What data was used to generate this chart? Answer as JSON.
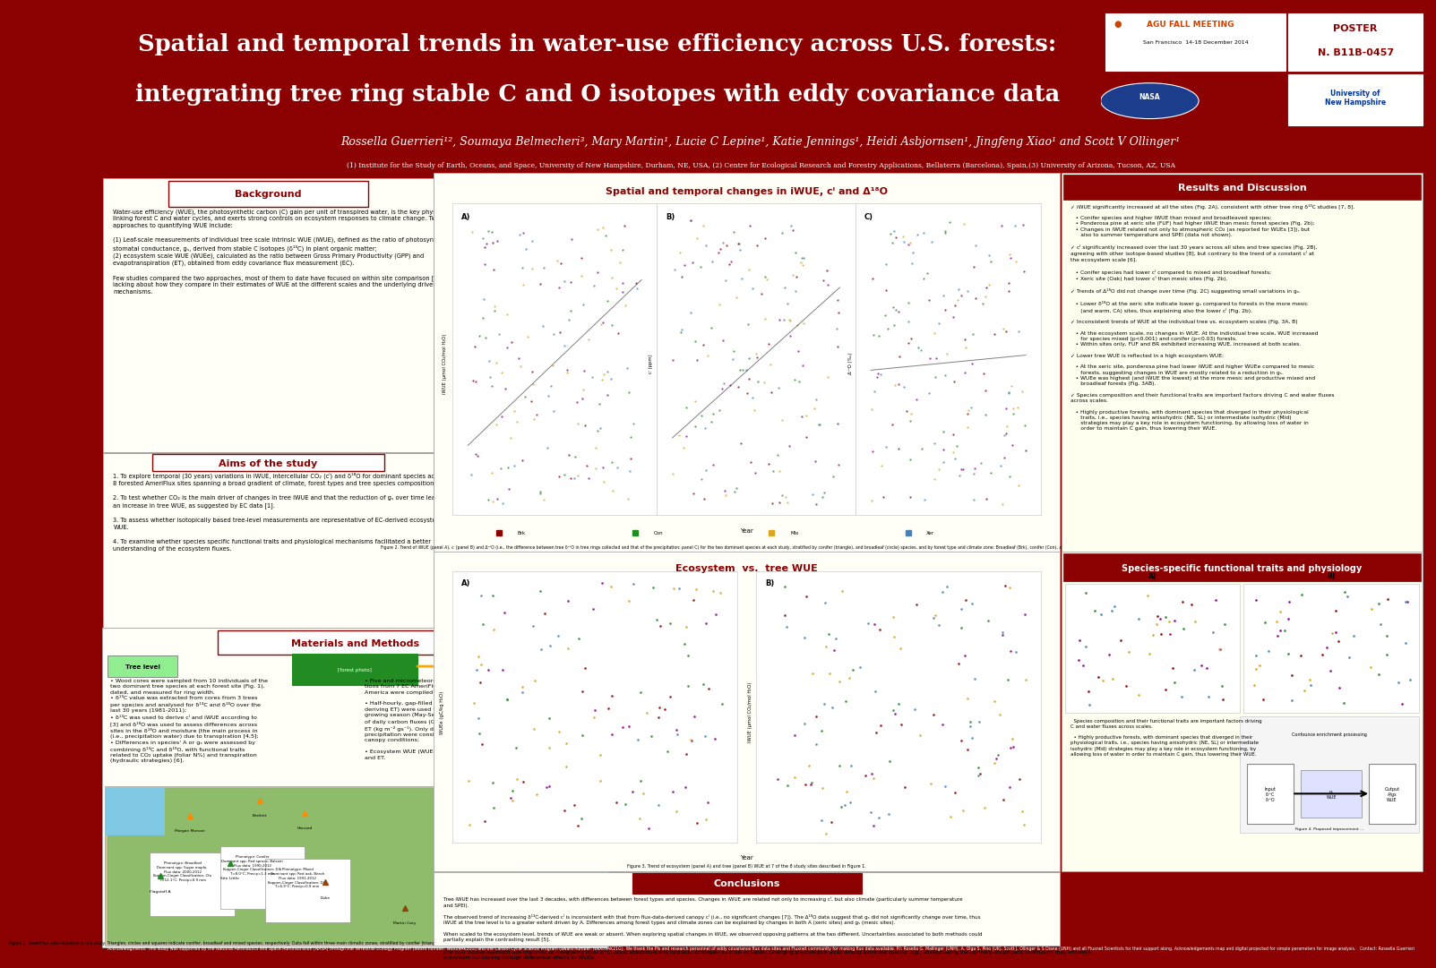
{
  "title_line1": "Spatial and temporal trends in water-use efficiency across U.S. forests:",
  "title_line2": "integrating tree ring stable C and O isotopes with eddy covariance data",
  "dark_red": "#8B0000",
  "authors": "Rossella Guerrieri¹², Soumaya Belmecheri³, Mary Martin¹, Lucie C Lepine¹, Katie Jennings¹, Heidi Asbjornsen¹, Jingfeng Xiao¹ and Scott V Ollinger¹",
  "affiliations": "(1) Institute for the Study of Earth, Oceans, and Space, University of New Hampshire, Durham, NE, USA, (2) Centre for Ecological Research and Forestry Applications, Bellaterra (Barcelona), Spain,(3) University of Arizona, Tucson, AZ, USA",
  "background_text": "Water-use efficiency (WUE), the photosynthetic carbon (C) gain per unit of transpired water, is the key physiological trait\nlinking forest C and water cycles, and exerts strong controls on ecosystem responses to climate change. Two common\napproaches to quantifying WUE include:\n\n(1) Leaf-scale measurements of individual tree scale intrinsic WUE (iWUE), defined as the ratio of photosynthesis, A, to\nstomatal conductance, gₛ, derived from stable C isotopes (δ¹³C) in plant organic matter;\n(2) ecosystem scale WUE (WUEe), calculated as the ratio between Gross Primary Productivity (GPP) and\nevapotranspiration (ET), obtained from eddy covariance flux measurement (EC).\n\nFew studies compared the two approaches, most of them to date have focused on within site comparison [1]. Knowledge is\nlacking about how they compare in their estimates of WUE at the different scales and the underlying drivers and physiological\nmechanisms.",
  "aims_text": "1. To explore temporal (30 years) variations in iWUE, intercellular CO₂ (cᴵ) and δ¹⁸O for dominant species across\n8 forested AmeriFlux sites spanning a broad gradient of climate, forest types and tree species composition.\n\n2. To test whether CO₂ is the main driver of changes in tree iWUE and that the reduction of gₛ over time leads to\nan increase in tree WUE, as suggested by EC data [1].\n\n3. To assess whether isotopically based tree-level measurements are representative of EC-derived ecosystem\nWUE.\n\n4. To examine whether species specific functional traits and physiological mechanisms facilitated a better\nunderstanding of the ecosystem fluxes.",
  "conclusions_text": "Tree iWUE has increased over the last 3 decades, with differences between forest types and species. Changes in iWUE are related not only to increasing cᴵ, but also climate (particularly summer temperature\nand SPEI).\n\nThe observed trend of increasing δ¹³C-derived cᴵ is inconsistent with that from flux-data-derived canopy cᴵ (i.e., no significant changes [7]). The Δ¹⁸O data suggest that gₛ did not significantly change over time, thus\niWUE at the tree level is to a greater extent driven by A. Differences among forest types and climate zones can be explained by changes in both A (xeric sites) and gₛ (mesic sites).\n\nWhen scaled to the ecosystem level, trends of WUE are weak or absent. When exploring spatial changes in WUE, we observed opposing patterns at the two different. Uncertainties associated to both methods could\npartially explain the contrasting result [5].\n\nThe dual isotope approach was improved by integrating foliar δ¹⁸O, wood anatomical and hydraulic strategies as input variables. Diverging physiological traits among dominant species (e.g., position along the isohydric-anisohydric continuum) may influence\necosystem functioning through differential effects on WUEe.",
  "results_text": "✓ iWUE significantly increased at all the sites (Fig. 2A), consistent with other tree ring δ¹³C studies [7, 8].\n\n   • Conifer species and higher iWUE than mixed and broadleaved species;\n   • Ponderosa pine at xeric site (FUF) had higher iWUE than mesic forest species (Fig. 2b);\n   • Changes in iWUE related not only to atmospheric CO₂ (as reported for WUEs [3]), but\n      also to summer temperature and SPEI (data not shown).\n\n✓ cᴵ significantly increased over the last 30 years across all sites and tree species (Fig. 2B),\nagreeing with other isotope-based studies [8], but contrary to the trend of a constant cᴵ at\nthe ecosystem scale [6].\n\n   • Conifer species had lower cᴵ compared to mixed and broadleaf forests;\n   • Xeric site (Oak) had lower cᴵ than mesic sites (Fig. 2b).\n\n✓ Trends of Δ¹⁸O did not change over time (Fig. 2C) suggesting small variations in gₛ.\n\n   • Lower δ¹⁸O at the xeric site indicate lower gₛ compared to forests in the more mesic\n      (and warm, CA) sites, thus explaining also the lower cᴵ (Fig. 2b).\n\n✓ Inconsistent trends of WUE at the individual tree vs. ecosystem scales (Fig. 3A, B)\n\n   • At the ecosystem scale, no changes in WUE. At the individual tree scale, WUE increased\n      for species mixed (p<0.001) and conifer (p<0.03) forests.\n   • Within sites only, FUF and BR exhibited increasing WUE, increased at both scales.\n\n✓ Lower tree WUE is reflected in a high ecosystem WUE:\n\n   • At the xeric site, ponderosa pine had lower iWUE and higher WUEe compared to mesic\n      forests, suggesting changes in WUE are mostly related to a reduction in gₛ.\n   • WUEe was highest (and iWUE the lowest) at the more mesic and productive mixed and\n      broadleaf forests (Fig. 3AB).\n\n✓ Species composition and their functional traits are important factors driving C and water fluxes\nacross scales.\n\n   • Highly productive forests, with dominant species that diverged in their physiological\n      traits, i.e., species having anisohydric (NE, SL) or intermediate isohydric (Mid)\n      strategies may play a key role in ecosystem functioning, by allowing loss of water in\n      order to maintain C gain, thus lowering their WUE.",
  "mm_left_text": "• Wood cores were sampled from 10 individuals of the\ntwo dominant tree species at each forest site (Fig. 1),\ndated, and measured for ring width.\n• δ¹³C value was extracted from cores from 3 trees\nper species and analysed for δ¹³C and δ¹⁸O over the\nlast 30 years (1981-2011);\n• δ¹³C was used to derive cᴵ and iWUE according to\n[3] and δ¹⁸O was used to assess differences across\nsites in the δ¹⁸O and moisture (the main process in\n(i.e., precipitation water) due to transpiration [4,5];\n• Differences in species' A or gₛ were assessed by\ncombining δ¹³C and δ¹⁸O, with functional traits\nrelated to CO₂ uptake (foliar N%) and transpiration\n(hydraulic strategies) [6].",
  "mm_right_text": "• Five and micrometeorological observa-\ntions from 7 EC AmeriFlux sites across Northern\nAmerica were compiled (Fig. 1).\n\n• Half-hourly, gap-filled GPP and LE (for\nderiving ET) were used to derive aggregated\ngrowing season (May-September, gs) daily fluxes\nof daily carbon fluxes (GPP g C m⁻² gs⁻¹) and\nET (kg m⁻² gs⁻¹). Only data with zero\nprecipitation were considered, to reflect dry\ncanopy conditions;\n\n• Ecosystem WUE (WUEe) was calculated as a ratio between GPP\nand ET.",
  "fig1_caption": "Figure 1. AmeriFlux sites included in this study. Triangles, circles and squares indicate conifer, broadleaf and mixed species, respectively. Data fall within three main climatic zones, stratified by conifer (triangle), and broadleaf (circle) species and by forest type and climate zone: Broadleaf (Brk), conifer (Con), and mixed species (Fig. 1).",
  "fig2_caption": "Figure 2. Trend of iWUE (panel A), cᴵ (panel B) and Δ¹⁸O (i.e., the difference between tree δ¹⁸O in tree rings collected and that of the precipitation; panel C) for the two dominant species at each study, stratified by conifer (triangle), and broadleaf (circle) species, and by forest type and climate zone: Broadleaf (Brk), conifer (Con), and mixed species (Fig 1).",
  "fig3_caption": "Figure 3. Trend of ecosystem (panel A) and tree (panel B) WUE at 7 of the 8 study sites described in Figure 1.",
  "ack_text": "Acknowledgments: This study was supported by the National Aeronautics and Space Administration (NASA) through the Terrestrial Ecology Program (award number: NNX09AK31G) and the Carbon Cycle Science Program (award number: NNX09AK21G). We thank the PIs and research personnel of eddy covariance flux data sites and Fluxnet community for making flux data available. P.I: Rosella G. Mallinger (UNH), A. Olga S. Pino (UK), Scott J. Ollinger & S Diane (UNH) and all Fluxnet Scientists for their support along. Acknowledgements map and digital projected for simple parameters for image analysis.   Contact: Rossella Guerrieri"
}
